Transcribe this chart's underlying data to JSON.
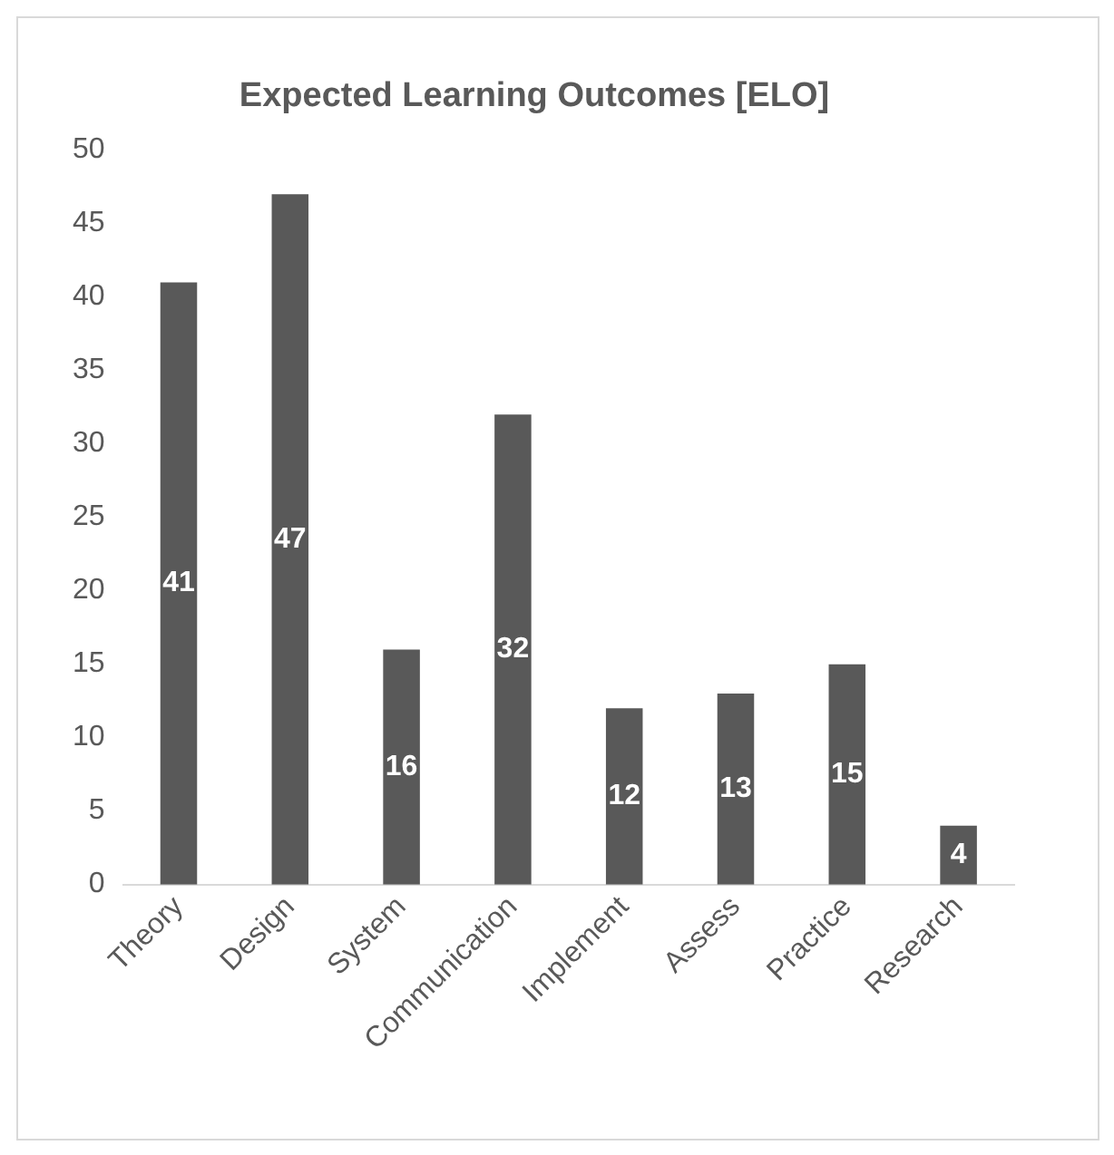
{
  "chart_data": {
    "type": "bar",
    "title": "Expected Learning Outcomes [ELO]",
    "categories": [
      "Theory",
      "Design",
      "System",
      "Communication",
      "Implement",
      "Assess",
      "Practice",
      "Research"
    ],
    "values": [
      41,
      47,
      16,
      32,
      12,
      13,
      15,
      4
    ],
    "color": "#595959",
    "ylim": [
      0,
      50
    ],
    "yticks": [
      0,
      5,
      10,
      15,
      20,
      25,
      30,
      35,
      40,
      45,
      50
    ],
    "grid": false,
    "legend": false,
    "data_labels": true
  }
}
